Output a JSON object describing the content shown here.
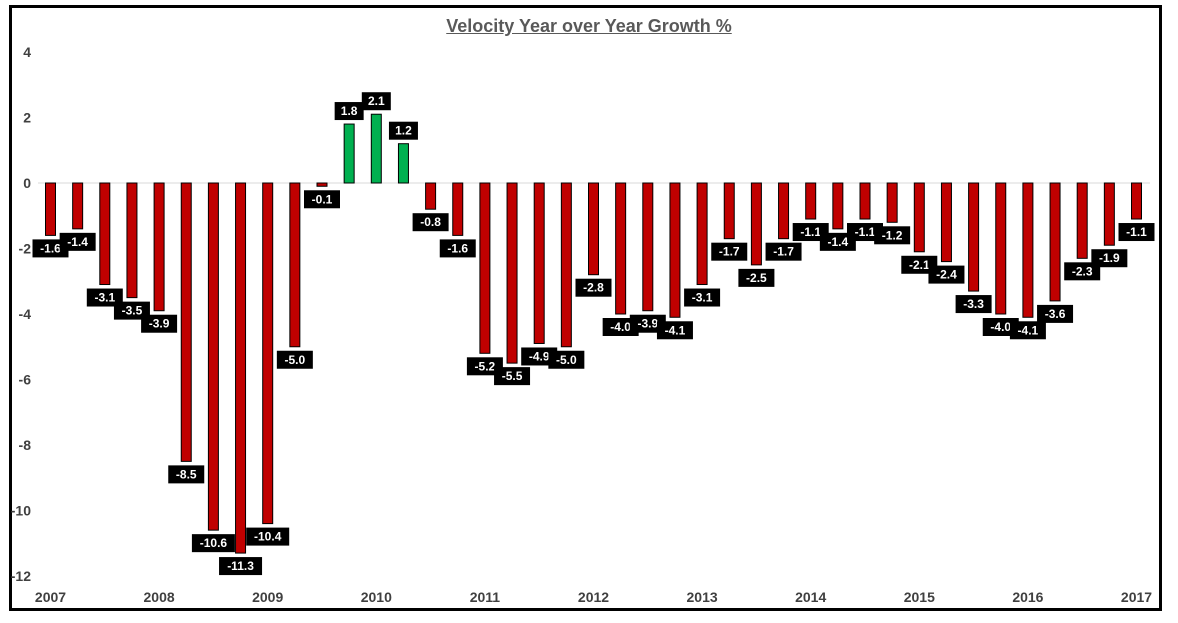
{
  "chart_data": {
    "type": "bar",
    "title": "Velocity Year over Year Growth %",
    "xlabel": "",
    "ylabel": "",
    "ylim": [
      -12,
      4
    ],
    "y_ticks": [
      "4",
      "2",
      "0",
      "-2",
      "-4",
      "-6",
      "-8",
      "-10",
      "-12"
    ],
    "year_labels": [
      "2007",
      "2008",
      "2009",
      "2010",
      "2011",
      "2012",
      "2013",
      "2014",
      "2015",
      "2016",
      "2017"
    ],
    "values": [
      -1.6,
      -1.4,
      -3.1,
      -3.5,
      -3.9,
      -8.5,
      -10.6,
      -11.3,
      -10.4,
      -5.0,
      -0.1,
      1.8,
      2.1,
      1.2,
      -0.8,
      -1.6,
      -5.2,
      -5.5,
      -4.9,
      -5.0,
      -2.8,
      -4.0,
      -3.9,
      -4.1,
      -3.1,
      -1.7,
      -2.5,
      -1.7,
      -1.1,
      -1.4,
      -1.1,
      -1.2,
      -2.1,
      -2.4,
      -3.3,
      -4.0,
      -4.1,
      -3.6,
      -2.3,
      -1.9,
      -1.1
    ],
    "labels": [
      "-1.6",
      "-1.4",
      "-3.1",
      "-3.5",
      "-3.9",
      "-8.5",
      "-10.6",
      "-11.3",
      "-10.4",
      "-5.0",
      "-0.1",
      "1.8",
      "2.1",
      "1.2",
      "-0.8",
      "-1.6",
      "-5.2",
      "-5.5",
      "-4.9",
      "-5.0",
      "-2.8",
      "-4.0",
      "-3.9",
      "-4.1",
      "-3.1",
      "-1.7",
      "-2.5",
      "-1.7",
      "-1.1",
      "-1.4",
      "-1.1",
      "-1.2",
      "-2.1",
      "-2.4",
      "-3.3",
      "-4.0",
      "-4.1",
      "-3.6",
      "-2.3",
      "-1.9",
      "-1.1"
    ],
    "grid": false,
    "legend": "none",
    "colors": {
      "negative": "#c00000",
      "positive": "#00b050",
      "label_background": "#000000",
      "label_text": "#ffffff",
      "axis_text": "#404040",
      "title_text": "#595959"
    }
  }
}
